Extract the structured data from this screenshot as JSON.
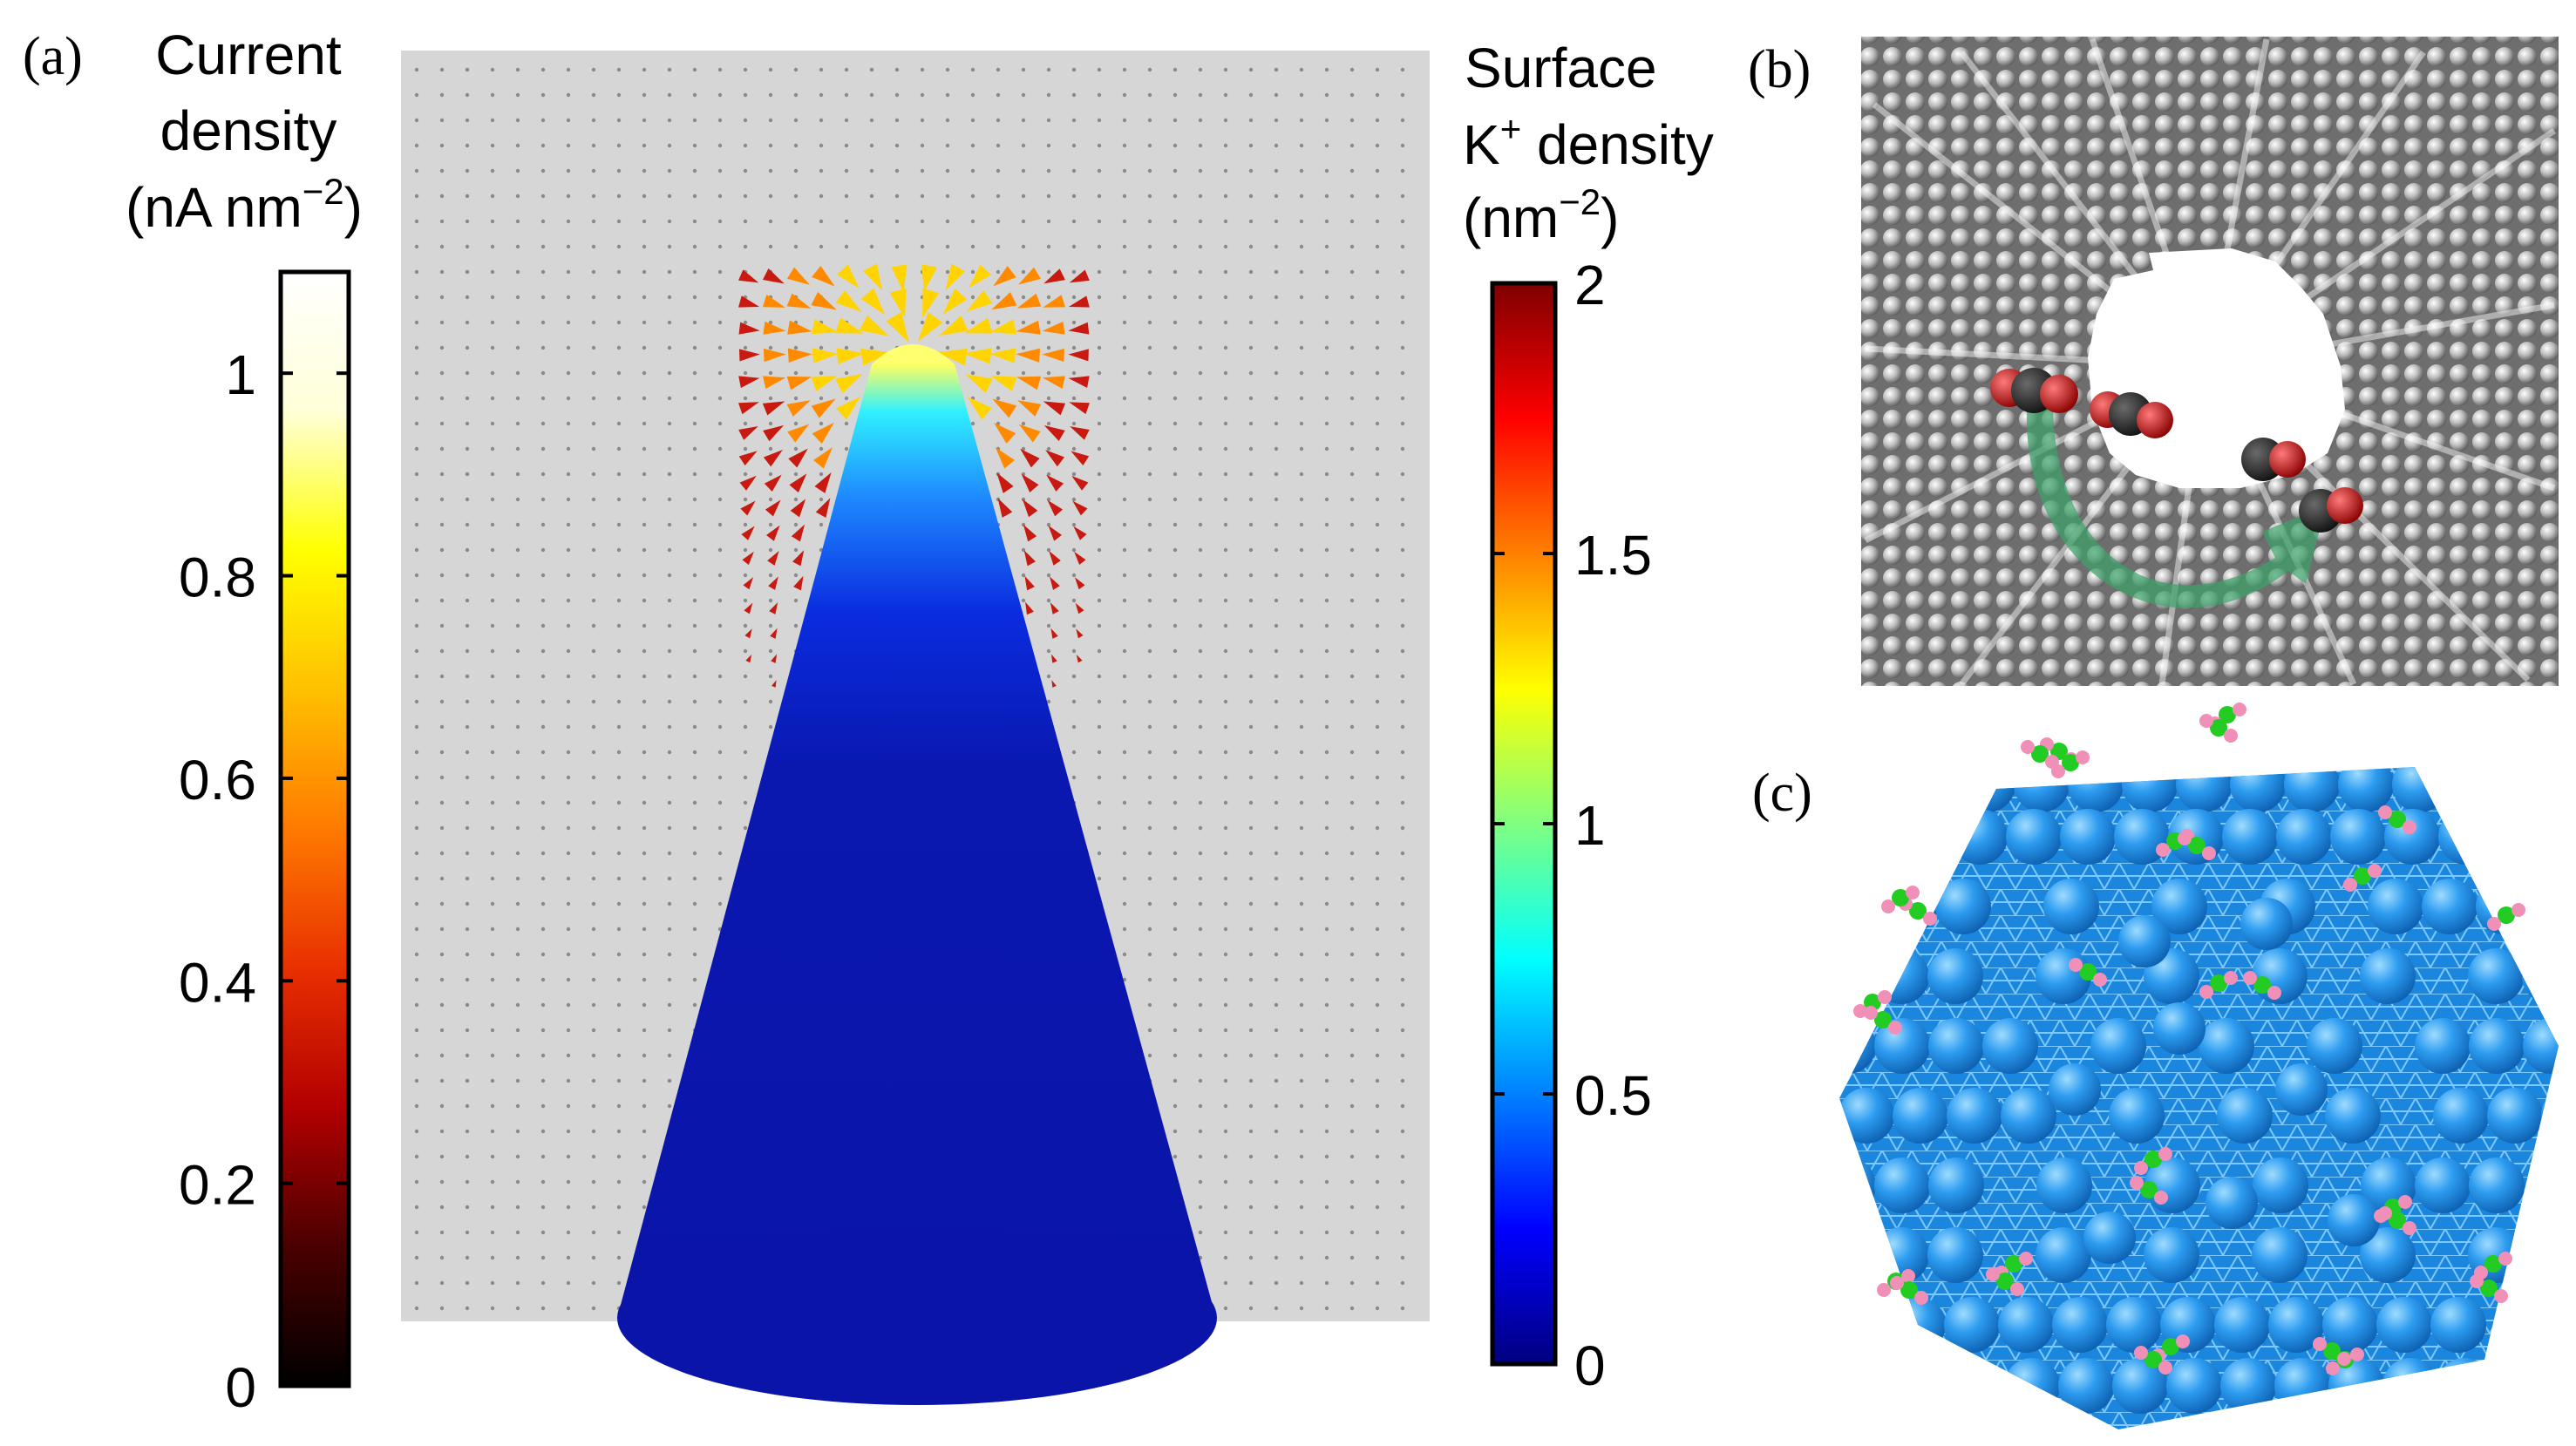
{
  "panel_a": {
    "label": "(a)",
    "current_colorbar": {
      "title_line1": "Current",
      "title_line2": "density",
      "unit_prefix": "(nA nm",
      "unit_exp": "−2",
      "unit_suffix": ")",
      "ticks": [
        "0",
        "0.2",
        "0.4",
        "0.6",
        "0.8",
        "1"
      ],
      "tick_values": [
        0,
        0.2,
        0.4,
        0.6,
        0.8,
        1.0
      ],
      "range": [
        0,
        1.1
      ],
      "colormap": [
        "#000000",
        "#4a0000",
        "#b30000",
        "#e83000",
        "#ff7a00",
        "#ffc000",
        "#ffff00",
        "#ffffd8",
        "#ffffff"
      ]
    },
    "k_colorbar": {
      "title_line1": "Surface",
      "title_line2_base": "K",
      "title_line2_sup": "+",
      "title_line2_rest": " density",
      "unit_prefix": "(nm",
      "unit_exp": "−2",
      "unit_suffix": ")",
      "ticks": [
        "0",
        "0.5",
        "1",
        "1.5",
        "2"
      ],
      "tick_values": [
        0,
        0.5,
        1.0,
        1.5,
        2.0
      ],
      "range": [
        0,
        2
      ],
      "colormap": [
        "#00007f",
        "#0000ff",
        "#0080ff",
        "#00ffff",
        "#80ff80",
        "#ffff00",
        "#ff8000",
        "#ff0000",
        "#7f0000"
      ]
    },
    "field_color": "#d4d4d4",
    "cone_color": "#0a14a8",
    "tip_color": "#ffff66",
    "arrow_color": "#c81a10"
  },
  "panel_b": {
    "label": "(b)",
    "wall_color": "#8a8a8a",
    "molecule_carbon_color": "#2a2a2a",
    "molecule_oxygen_color": "#cc1111",
    "arrow_color": "#2e9e5e"
  },
  "panel_c": {
    "label": "(c)",
    "atom_color": "#1e90e6",
    "adsorbate_green": "#22cc22",
    "adsorbate_pink": "#f090b8"
  }
}
